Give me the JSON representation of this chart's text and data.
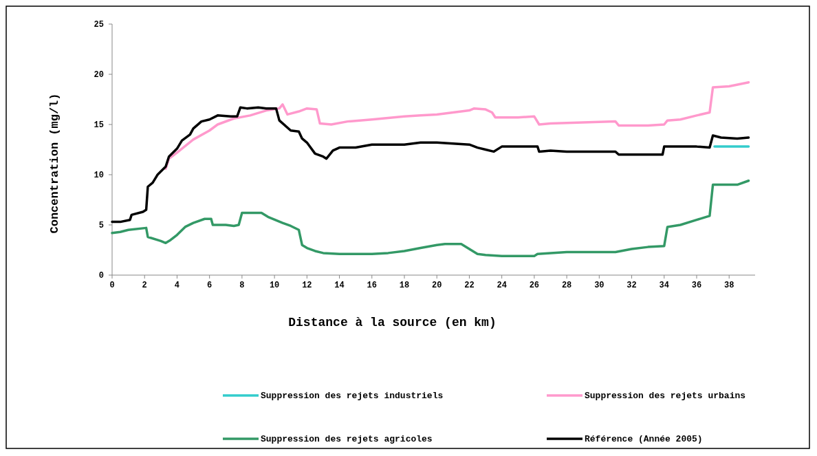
{
  "chart_data": {
    "type": "line",
    "xlabel": "Distance à la source (en km)",
    "ylabel": "Concentration (mg/l)",
    "xlim": [
      0,
      39.6
    ],
    "xticks": [
      0,
      2,
      4,
      6,
      8,
      10,
      12,
      14,
      16,
      18,
      20,
      22,
      24,
      26,
      28,
      30,
      32,
      34,
      36,
      38
    ],
    "ylim": [
      0,
      25
    ],
    "yticks": [
      0,
      5,
      10,
      15,
      20,
      25
    ],
    "grid": false,
    "legend": "bottom",
    "marker": "none",
    "line_style": "solid",
    "series": [
      {
        "name": "Suppression des rejets industriels",
        "color": "#33cccc",
        "x": [
          37.1,
          39.2
        ],
        "values": [
          12.8,
          12.8
        ]
      },
      {
        "name": "Suppression des rejets urbains",
        "color": "#ff99cc",
        "x": [
          3.3,
          3.5,
          4.0,
          5.0,
          6.0,
          6.5,
          7.5,
          8.5,
          9.5,
          10.3,
          10.5,
          10.8,
          11.5,
          12.0,
          12.6,
          12.8,
          13.5,
          14.5,
          16.0,
          18.0,
          19.0,
          20.0,
          21.0,
          22.0,
          22.3,
          23.0,
          23.4,
          23.6,
          25.0,
          26.0,
          26.3,
          27.0,
          29.0,
          31.0,
          31.2,
          32.0,
          33.0,
          34.0,
          34.2,
          35.0,
          36.0,
          36.8,
          37.0,
          38.0,
          39.2
        ],
        "values": [
          10.6,
          11.6,
          12.2,
          13.5,
          14.4,
          15.0,
          15.6,
          15.9,
          16.4,
          16.6,
          17.0,
          16.0,
          16.3,
          16.6,
          16.5,
          15.1,
          15.0,
          15.3,
          15.5,
          15.8,
          15.9,
          16.0,
          16.2,
          16.4,
          16.6,
          16.5,
          16.2,
          15.7,
          15.7,
          15.8,
          15.0,
          15.1,
          15.2,
          15.3,
          14.9,
          14.9,
          14.9,
          15.0,
          15.4,
          15.5,
          15.9,
          16.2,
          18.7,
          18.8,
          19.2
        ]
      },
      {
        "name": "Suppression des rejets agricoles",
        "color": "#339966",
        "x": [
          0,
          0.5,
          1.0,
          2.1,
          2.2,
          3.0,
          3.3,
          3.6,
          4.0,
          4.5,
          5.0,
          5.7,
          6.1,
          6.2,
          7.0,
          7.5,
          7.8,
          8.0,
          9.2,
          9.6,
          10.5,
          11.0,
          11.5,
          11.7,
          12.0,
          12.5,
          13.0,
          14.0,
          16.0,
          17.0,
          18.0,
          19.0,
          20.0,
          20.5,
          21.5,
          22.0,
          22.5,
          23.0,
          24.0,
          26.0,
          26.2,
          28.0,
          31.0,
          32.0,
          33.0,
          34.0,
          34.2,
          35.0,
          36.0,
          36.8,
          37.0,
          38.5,
          39.2
        ],
        "values": [
          4.2,
          4.3,
          4.5,
          4.7,
          3.8,
          3.4,
          3.2,
          3.5,
          4.0,
          4.8,
          5.2,
          5.6,
          5.6,
          5.0,
          5.0,
          4.9,
          5.0,
          6.2,
          6.2,
          5.8,
          5.2,
          4.9,
          4.5,
          3.0,
          2.7,
          2.4,
          2.2,
          2.1,
          2.1,
          2.2,
          2.4,
          2.7,
          3.0,
          3.1,
          3.1,
          2.6,
          2.1,
          2.0,
          1.9,
          1.9,
          2.1,
          2.3,
          2.3,
          2.6,
          2.8,
          2.9,
          4.8,
          5.0,
          5.5,
          5.9,
          9.0,
          9.0,
          9.4
        ]
      },
      {
        "name": "Référence (Année 2005)",
        "color": "#000000",
        "x": [
          0,
          0.5,
          1.1,
          1.2,
          1.9,
          2.1,
          2.2,
          2.5,
          2.8,
          3.3,
          3.5,
          4.0,
          4.3,
          4.8,
          5.0,
          5.5,
          6.0,
          6.5,
          7.3,
          7.7,
          7.9,
          8.3,
          9.0,
          9.5,
          10.1,
          10.3,
          11.0,
          11.5,
          11.7,
          12.0,
          12.5,
          13.0,
          13.2,
          13.6,
          14.0,
          15.0,
          16.0,
          18.0,
          19.0,
          20.0,
          21.0,
          22.0,
          22.5,
          23.0,
          23.5,
          24.0,
          25.5,
          26.2,
          26.3,
          27.0,
          28.0,
          31.0,
          31.2,
          33.0,
          33.9,
          34.0,
          36.0,
          36.8,
          37.0,
          37.5,
          38.5,
          39.2
        ],
        "values": [
          5.3,
          5.3,
          5.5,
          6.0,
          6.3,
          6.5,
          8.8,
          9.2,
          10.0,
          10.8,
          11.8,
          12.6,
          13.4,
          14.0,
          14.6,
          15.3,
          15.5,
          15.9,
          15.8,
          15.8,
          16.7,
          16.6,
          16.7,
          16.6,
          16.6,
          15.4,
          14.4,
          14.3,
          13.6,
          13.2,
          12.1,
          11.8,
          11.6,
          12.4,
          12.7,
          12.7,
          13.0,
          13.0,
          13.2,
          13.2,
          13.1,
          13.0,
          12.7,
          12.5,
          12.3,
          12.8,
          12.8,
          12.8,
          12.3,
          12.4,
          12.3,
          12.3,
          12.0,
          12.0,
          12.0,
          12.8,
          12.8,
          12.7,
          13.9,
          13.7,
          13.6,
          13.7
        ]
      }
    ]
  }
}
